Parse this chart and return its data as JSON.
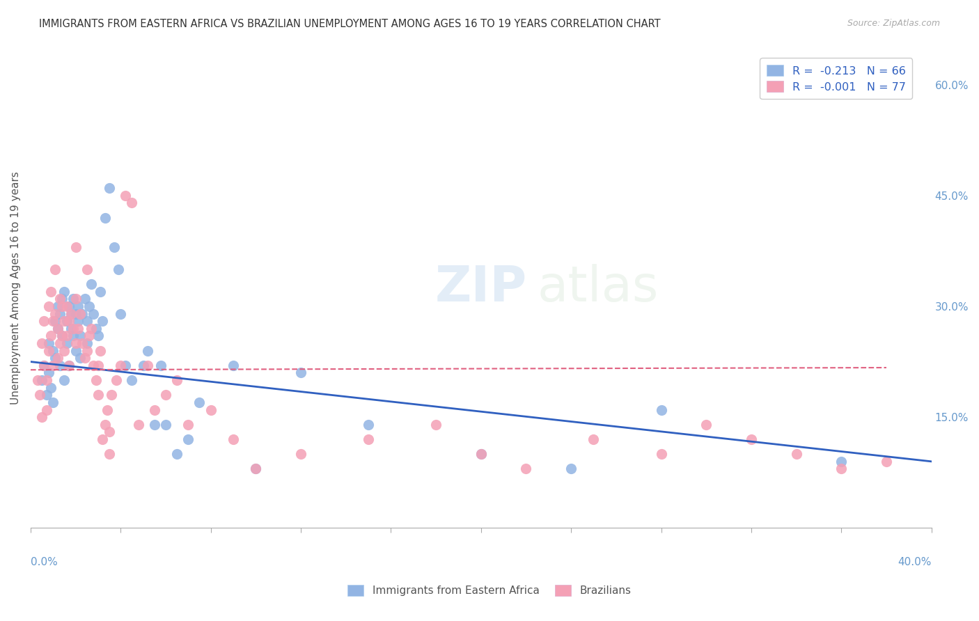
{
  "title": "IMMIGRANTS FROM EASTERN AFRICA VS BRAZILIAN UNEMPLOYMENT AMONG AGES 16 TO 19 YEARS CORRELATION CHART",
  "source": "Source: ZipAtlas.com",
  "ylabel": "Unemployment Among Ages 16 to 19 years",
  "right_yticklabels": [
    "",
    "15.0%",
    "30.0%",
    "45.0%",
    "60.0%"
  ],
  "xmin": 0.0,
  "xmax": 0.4,
  "ymin": 0.0,
  "ymax": 0.65,
  "legend_blue_text": "R =  -0.213   N = 66",
  "legend_pink_text": "R =  -0.001   N = 77",
  "legend_label1": "Immigrants from Eastern Africa",
  "legend_label2": "Brazilians",
  "blue_color": "#92b4e3",
  "pink_color": "#f4a0b5",
  "blue_line_color": "#3060c0",
  "pink_line_color": "#e06080",
  "watermark_zip": "ZIP",
  "watermark_atlas": "atlas",
  "blue_scatter_x": [
    0.005,
    0.006,
    0.007,
    0.008,
    0.008,
    0.009,
    0.01,
    0.01,
    0.011,
    0.011,
    0.012,
    0.012,
    0.013,
    0.013,
    0.014,
    0.014,
    0.015,
    0.015,
    0.016,
    0.016,
    0.017,
    0.017,
    0.018,
    0.018,
    0.019,
    0.019,
    0.02,
    0.02,
    0.021,
    0.021,
    0.022,
    0.022,
    0.023,
    0.024,
    0.025,
    0.025,
    0.026,
    0.027,
    0.028,
    0.029,
    0.03,
    0.031,
    0.032,
    0.033,
    0.035,
    0.037,
    0.039,
    0.04,
    0.042,
    0.045,
    0.05,
    0.052,
    0.055,
    0.058,
    0.06,
    0.065,
    0.07,
    0.075,
    0.09,
    0.1,
    0.12,
    0.15,
    0.2,
    0.24,
    0.28,
    0.36
  ],
  "blue_scatter_y": [
    0.2,
    0.22,
    0.18,
    0.25,
    0.21,
    0.19,
    0.24,
    0.17,
    0.28,
    0.23,
    0.3,
    0.27,
    0.22,
    0.29,
    0.31,
    0.26,
    0.32,
    0.2,
    0.28,
    0.25,
    0.3,
    0.22,
    0.29,
    0.27,
    0.26,
    0.31,
    0.29,
    0.24,
    0.3,
    0.28,
    0.26,
    0.23,
    0.29,
    0.31,
    0.28,
    0.25,
    0.3,
    0.33,
    0.29,
    0.27,
    0.26,
    0.32,
    0.28,
    0.42,
    0.46,
    0.38,
    0.35,
    0.29,
    0.22,
    0.2,
    0.22,
    0.24,
    0.14,
    0.22,
    0.14,
    0.1,
    0.12,
    0.17,
    0.22,
    0.08,
    0.21,
    0.14,
    0.1,
    0.08,
    0.16,
    0.09
  ],
  "pink_scatter_x": [
    0.003,
    0.004,
    0.005,
    0.005,
    0.006,
    0.006,
    0.007,
    0.007,
    0.008,
    0.008,
    0.009,
    0.009,
    0.01,
    0.01,
    0.011,
    0.011,
    0.012,
    0.012,
    0.013,
    0.013,
    0.014,
    0.014,
    0.015,
    0.015,
    0.016,
    0.016,
    0.017,
    0.017,
    0.018,
    0.019,
    0.02,
    0.02,
    0.021,
    0.022,
    0.023,
    0.024,
    0.025,
    0.026,
    0.027,
    0.028,
    0.029,
    0.03,
    0.031,
    0.032,
    0.033,
    0.034,
    0.035,
    0.036,
    0.038,
    0.04,
    0.042,
    0.045,
    0.048,
    0.052,
    0.055,
    0.06,
    0.065,
    0.07,
    0.08,
    0.09,
    0.1,
    0.12,
    0.15,
    0.18,
    0.2,
    0.22,
    0.25,
    0.28,
    0.3,
    0.32,
    0.34,
    0.36,
    0.38,
    0.02,
    0.025,
    0.03,
    0.035
  ],
  "pink_scatter_y": [
    0.2,
    0.18,
    0.25,
    0.15,
    0.28,
    0.22,
    0.2,
    0.16,
    0.3,
    0.24,
    0.32,
    0.26,
    0.28,
    0.22,
    0.35,
    0.29,
    0.27,
    0.23,
    0.31,
    0.25,
    0.3,
    0.26,
    0.28,
    0.24,
    0.26,
    0.3,
    0.28,
    0.22,
    0.29,
    0.27,
    0.25,
    0.31,
    0.27,
    0.29,
    0.25,
    0.23,
    0.24,
    0.26,
    0.27,
    0.22,
    0.2,
    0.18,
    0.24,
    0.12,
    0.14,
    0.16,
    0.13,
    0.18,
    0.2,
    0.22,
    0.45,
    0.44,
    0.14,
    0.22,
    0.16,
    0.18,
    0.2,
    0.14,
    0.16,
    0.12,
    0.08,
    0.1,
    0.12,
    0.14,
    0.1,
    0.08,
    0.12,
    0.1,
    0.14,
    0.12,
    0.1,
    0.08,
    0.09,
    0.38,
    0.35,
    0.22,
    0.1
  ],
  "grid_color": "#cccccc",
  "background_color": "#ffffff",
  "title_color": "#333333",
  "axis_color": "#6699cc"
}
